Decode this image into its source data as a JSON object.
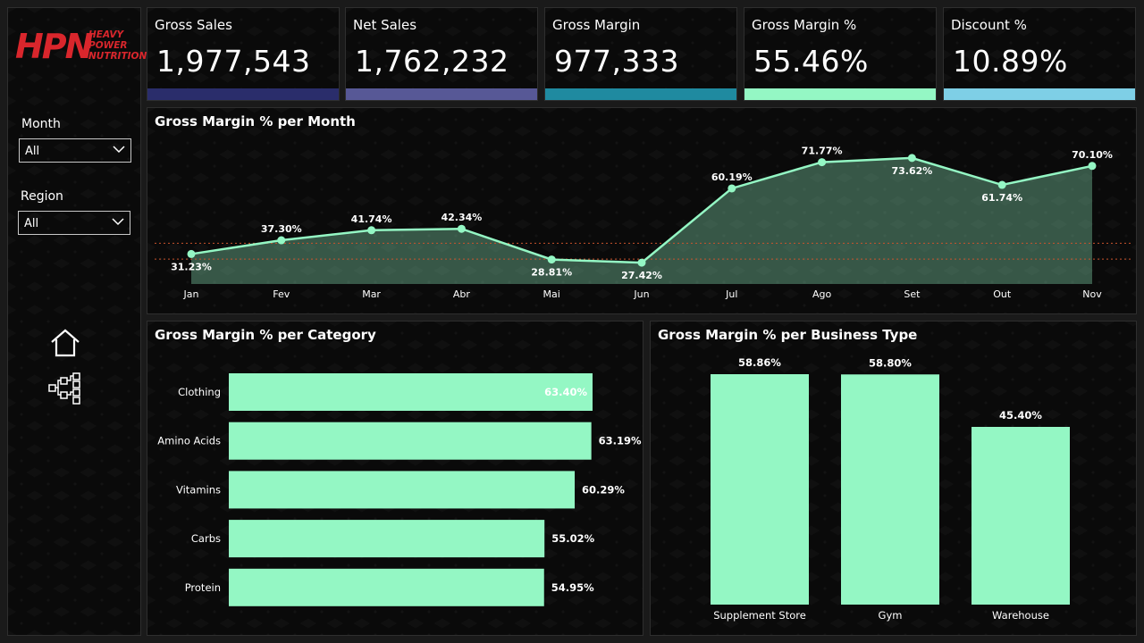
{
  "brand": {
    "logo_text": "HPN",
    "logo_subtext": [
      "HEAVY",
      "POWER",
      "NUTRITION"
    ],
    "color": "#d9262c"
  },
  "filters": {
    "month": {
      "label": "Month",
      "value": "All"
    },
    "region": {
      "label": "Region",
      "value": "All"
    }
  },
  "nav_icons": [
    "home-icon",
    "hierarchy-icon"
  ],
  "kpis": [
    {
      "title": "Gross Sales",
      "value": "1,977,543",
      "color": "#2a2d6b"
    },
    {
      "title": "Net Sales",
      "value": "1,762,232",
      "color": "#575896"
    },
    {
      "title": "Gross Margin",
      "value": "977,333",
      "color": "#1f8aa0"
    },
    {
      "title": "Gross Margin %",
      "value": "55.46%",
      "color": "#94f7c4"
    },
    {
      "title": "Discount %",
      "value": "10.89%",
      "color": "#7ecfe6"
    }
  ],
  "chart_data": [
    {
      "type": "area",
      "title": "Gross Margin % per Month",
      "categories": [
        "Jan",
        "Fev",
        "Mar",
        "Abr",
        "Mai",
        "Jun",
        "Jul",
        "Ago",
        "Set",
        "Out",
        "Nov"
      ],
      "values": [
        31.23,
        37.3,
        41.74,
        42.34,
        28.81,
        27.42,
        60.19,
        71.77,
        73.62,
        61.74,
        70.1
      ],
      "labels": [
        "31.23%",
        "37.30%",
        "41.74%",
        "42.34%",
        "28.81%",
        "27.42%",
        "60.19%",
        "71.77%",
        "73.62%",
        "61.74%",
        "70.10%"
      ],
      "reference_lines": [
        36,
        29
      ],
      "ylim": [
        18,
        85
      ],
      "color": "#94f7c4"
    },
    {
      "type": "bar",
      "orientation": "horizontal",
      "title": "Gross Margin % per Category",
      "categories": [
        "Clothing",
        "Amino Acids",
        "Vitamins",
        "Carbs",
        "Protein"
      ],
      "values": [
        63.4,
        63.19,
        60.29,
        55.02,
        54.95
      ],
      "labels": [
        "63.40%",
        "63.19%",
        "60.29%",
        "55.02%",
        "54.95%"
      ],
      "xlim": [
        0,
        63.4
      ],
      "color": "#94f7c4"
    },
    {
      "type": "bar",
      "orientation": "vertical",
      "title": "Gross Margin % per Business Type",
      "categories": [
        "Supplement Store",
        "Gym",
        "Warehouse"
      ],
      "values": [
        58.86,
        58.8,
        45.4
      ],
      "labels": [
        "58.86%",
        "58.80%",
        "45.40%"
      ],
      "ylim": [
        0,
        58.86
      ],
      "color": "#94f7c4"
    }
  ]
}
